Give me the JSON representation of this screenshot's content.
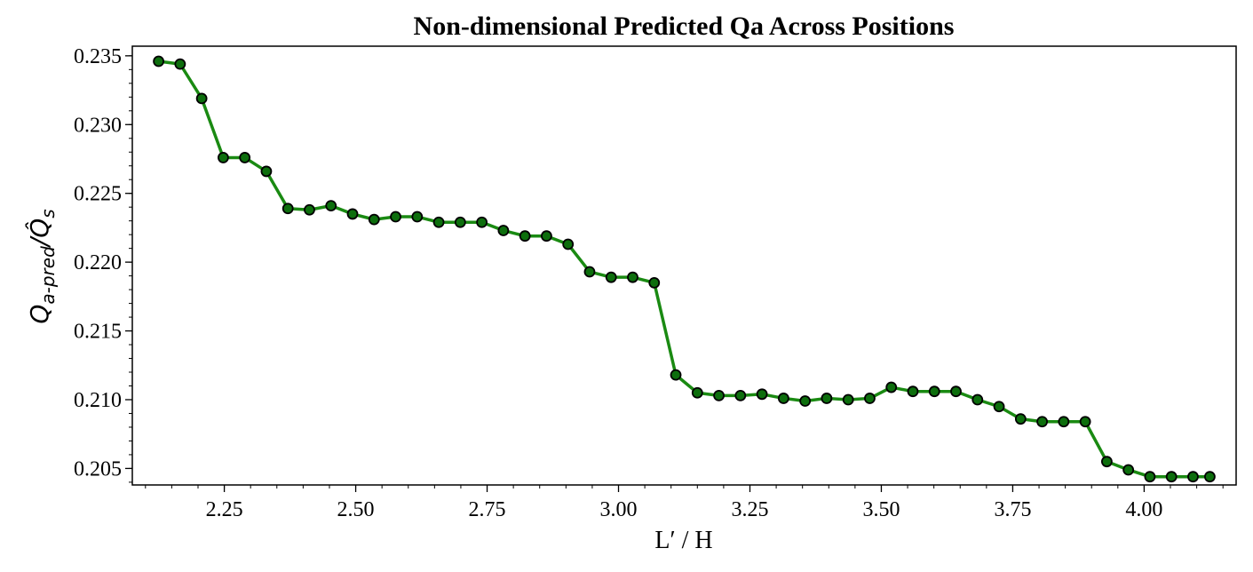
{
  "chart_data": {
    "type": "line",
    "title": "Non-dimensional Predicted Qa Across Positions",
    "xlabel": "L′ / H",
    "ylabel": {
      "main": "Q",
      "subscript": "a-pred",
      "separator": "/",
      "denominator": "Q̂",
      "denominator_subscript": "s"
    },
    "xlim": [
      2.075,
      4.175
    ],
    "ylim": [
      0.2038,
      0.2357
    ],
    "xticks": [
      2.25,
      2.5,
      2.75,
      3.0,
      3.25,
      3.5,
      3.75,
      4.0
    ],
    "xtick_labels": [
      "2.25",
      "2.50",
      "2.75",
      "3.00",
      "3.25",
      "3.50",
      "3.75",
      "4.00"
    ],
    "yticks": [
      0.205,
      0.21,
      0.215,
      0.22,
      0.225,
      0.23,
      0.235
    ],
    "ytick_labels": [
      "0.205",
      "0.210",
      "0.215",
      "0.220",
      "0.225",
      "0.230",
      "0.235"
    ],
    "grid": false,
    "line_color": "#1a8a12",
    "marker_color": "#0d6e0d",
    "marker_edge_color": "#000000",
    "series": [
      {
        "x": [
          2.125,
          2.166,
          2.207,
          2.248,
          2.289,
          2.33,
          2.371,
          2.412,
          2.453,
          2.494,
          2.535,
          2.576,
          2.617,
          2.658,
          2.699,
          2.74,
          2.781,
          2.822,
          2.863,
          2.904,
          2.945,
          2.986,
          3.027,
          3.068,
          3.109,
          3.15,
          3.191,
          3.232,
          3.273,
          3.314,
          3.355,
          3.396,
          3.437,
          3.478,
          3.519,
          3.56,
          3.601,
          3.642,
          3.683,
          3.724,
          3.765,
          3.806,
          3.847,
          3.888,
          3.929,
          3.97,
          4.011,
          4.052,
          4.093,
          4.125
        ],
        "y": [
          0.2346,
          0.2344,
          0.2319,
          0.2276,
          0.2276,
          0.2266,
          0.2239,
          0.2238,
          0.2241,
          0.2235,
          0.2231,
          0.2233,
          0.2233,
          0.2229,
          0.2229,
          0.2229,
          0.2223,
          0.2219,
          0.2219,
          0.2213,
          0.2193,
          0.2189,
          0.2189,
          0.2185,
          0.2118,
          0.2105,
          0.2103,
          0.2103,
          0.2104,
          0.2101,
          0.2099,
          0.2101,
          0.21,
          0.2101,
          0.2109,
          0.2106,
          0.2106,
          0.2106,
          0.21,
          0.2095,
          0.2086,
          0.2084,
          0.2084,
          0.2084,
          0.2055,
          0.2049,
          0.2044,
          0.2044,
          0.2044,
          0.2044
        ]
      }
    ]
  }
}
